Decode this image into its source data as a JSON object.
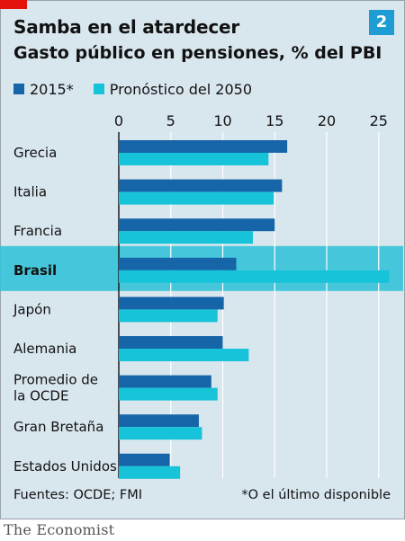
{
  "header": {
    "title": "Samba en el atardecer",
    "subtitle": "Gasto público en pensiones, % del PBI",
    "badge": "2"
  },
  "footer": {
    "source": "Fuentes: OCDE; FMI",
    "note": "*O el último disponible",
    "brand": "The Economist"
  },
  "colors": {
    "series_2015": "#1565a8",
    "series_2050": "#17c3d8",
    "highlight_band": "#35c2d8",
    "background": "#d8e6ee"
  },
  "chart_data": {
    "type": "bar",
    "orientation": "horizontal",
    "categories": [
      "Grecia",
      "Italia",
      "Francia",
      "Brasil",
      "Japón",
      "Alemania",
      "Promedio de la OCDE",
      "Gran Bretaña",
      "Estados Unidos"
    ],
    "category_lines": [
      [
        "Grecia"
      ],
      [
        "Italia"
      ],
      [
        "Francia"
      ],
      [
        "Brasil"
      ],
      [
        "Japón"
      ],
      [
        "Alemania"
      ],
      [
        "Promedio de",
        "la OCDE"
      ],
      [
        "Gran Bretaña"
      ],
      [
        "Estados Unidos"
      ]
    ],
    "highlight": "Brasil",
    "series": [
      {
        "name": "2015*",
        "values": [
          16.2,
          15.7,
          15.0,
          11.3,
          10.1,
          10.0,
          8.9,
          7.7,
          4.9
        ]
      },
      {
        "name": "Pronóstico del 2050",
        "values": [
          14.4,
          14.9,
          12.9,
          26.0,
          9.5,
          12.5,
          9.5,
          8.0,
          5.9
        ]
      }
    ],
    "xlim": [
      0,
      26
    ],
    "xticks": [
      0,
      5,
      10,
      15,
      20,
      25
    ],
    "grid": true,
    "legend_position": "top-left"
  }
}
